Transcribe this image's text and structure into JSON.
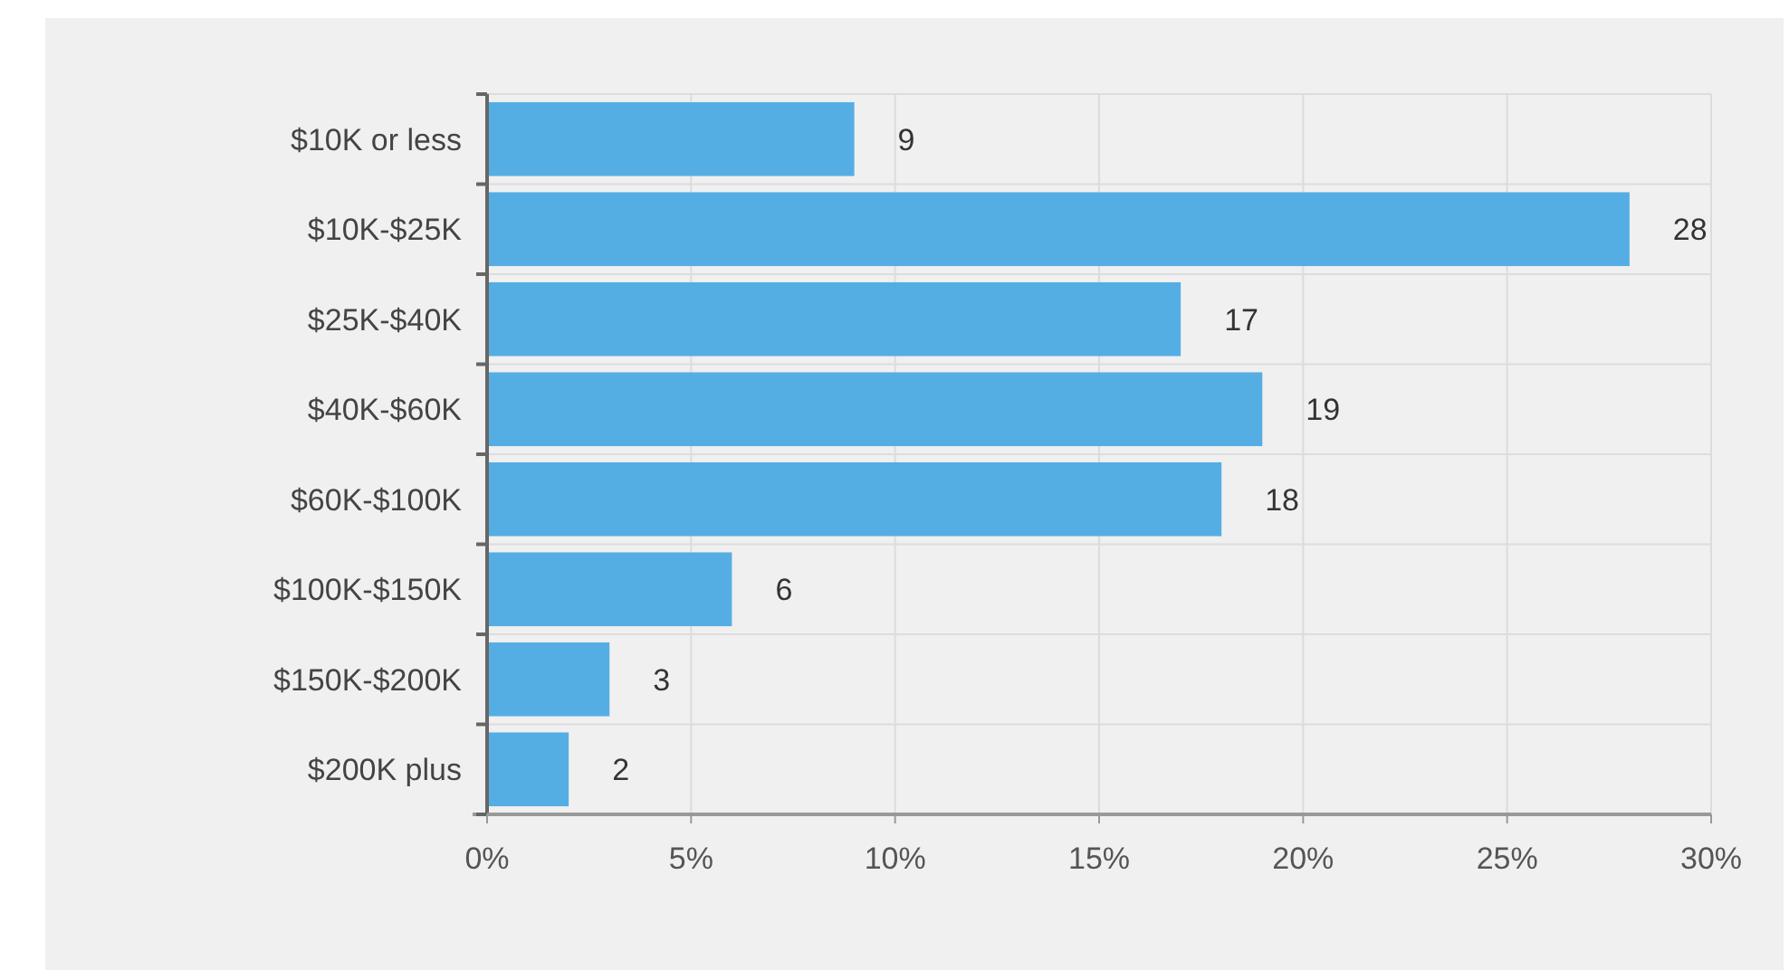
{
  "chart_data": {
    "type": "bar",
    "orientation": "horizontal",
    "categories": [
      "$10K or less",
      "$10K-$25K",
      "$25K-$40K",
      "$40K-$60K",
      "$60K-$100K",
      "$100K-$150K",
      "$150K-$200K",
      "$200K plus"
    ],
    "values": [
      9,
      28,
      17,
      19,
      18,
      6,
      3,
      2
    ],
    "color": "#55aee3",
    "xlim": [
      0,
      30
    ],
    "xticks": [
      {
        "value": 0,
        "label": "0%"
      },
      {
        "value": 5,
        "label": "5%"
      },
      {
        "value": 10,
        "label": "10%"
      },
      {
        "value": 15,
        "label": "15%"
      },
      {
        "value": 20,
        "label": "20%"
      },
      {
        "value": 25,
        "label": "25%"
      },
      {
        "value": 30,
        "label": "30%"
      }
    ],
    "grid": true,
    "data_labels": true
  }
}
